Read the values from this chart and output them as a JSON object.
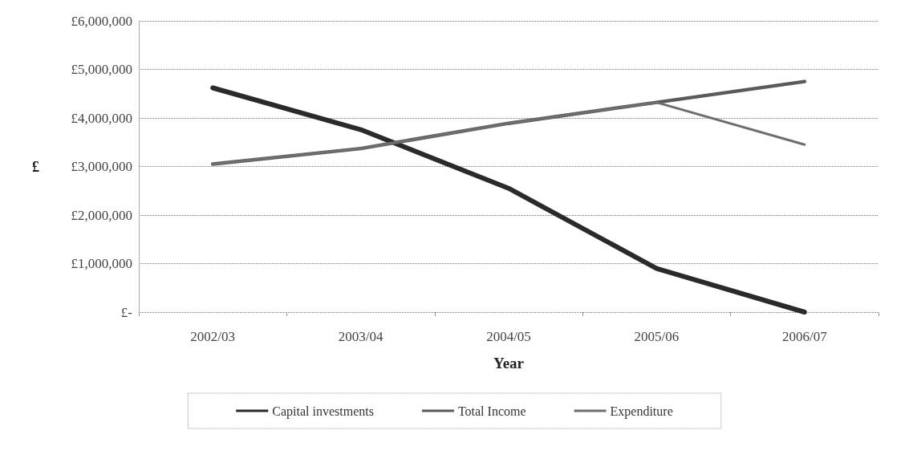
{
  "chart_data": {
    "type": "line",
    "xlabel": "Year",
    "ylabel": "£",
    "categories": [
      "2002/03",
      "2003/04",
      "2004/05",
      "2005/06",
      "2006/07"
    ],
    "series": [
      {
        "name": "Capital investments",
        "color": "#2a2a2a",
        "values": [
          4620000,
          3760000,
          2550000,
          900000,
          0
        ]
      },
      {
        "name": "Total Income",
        "color": "#5a5a5a",
        "values": [
          3050000,
          3370000,
          3890000,
          4320000,
          4750000
        ]
      },
      {
        "name": "Expenditure",
        "color": "#6e6e6e",
        "values": [
          3050000,
          3370000,
          3890000,
          4320000,
          3450000
        ]
      }
    ],
    "ylim": [
      0,
      6000000
    ],
    "yticks": [
      {
        "value": 0,
        "label": "£-"
      },
      {
        "value": 1000000,
        "label": "£1,000,000"
      },
      {
        "value": 2000000,
        "label": "£2,000,000"
      },
      {
        "value": 3000000,
        "label": "£3,000,000"
      },
      {
        "value": 4000000,
        "label": "£4,000,000"
      },
      {
        "value": 5000000,
        "label": "£5,000,000"
      },
      {
        "value": 6000000,
        "label": "£6,000,000"
      }
    ],
    "grid": "y",
    "legend": "bottom",
    "marker": "none",
    "line_style": "solid"
  }
}
